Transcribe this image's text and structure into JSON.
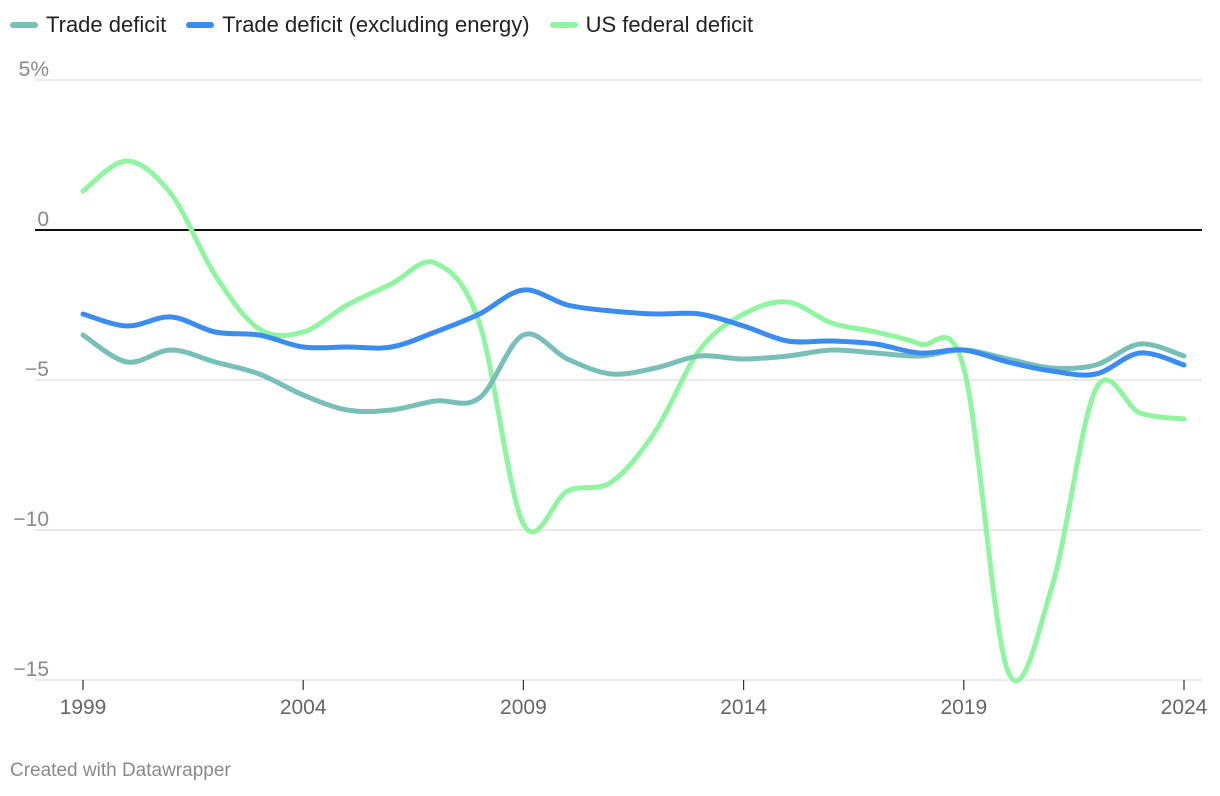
{
  "chart_data": {
    "type": "line",
    "title": "",
    "xlabel": "",
    "ylabel": "",
    "x": [
      1999,
      2000,
      2001,
      2002,
      2003,
      2004,
      2005,
      2006,
      2007,
      2008,
      2009,
      2010,
      2011,
      2012,
      2013,
      2014,
      2015,
      2016,
      2017,
      2018,
      2019,
      2020,
      2021,
      2022,
      2023,
      2024
    ],
    "xlim": [
      1999,
      2024
    ],
    "ylim": [
      -15,
      5
    ],
    "y_ticks": [
      5,
      0,
      -5,
      -10,
      -15
    ],
    "y_tick_labels": [
      "5%",
      "0",
      "−5",
      "−10",
      "−15"
    ],
    "x_ticks": [
      1999,
      2004,
      2009,
      2014,
      2019,
      2024
    ],
    "x_tick_labels": [
      "1999",
      "2004",
      "2009",
      "2014",
      "2019",
      "2024"
    ],
    "zero_line": true,
    "legend_position": "top-left",
    "series": [
      {
        "name": "Trade deficit",
        "color": "#78bfb8",
        "values": [
          -3.5,
          -4.4,
          -4.0,
          -4.4,
          -4.8,
          -5.5,
          -6.0,
          -6.0,
          -5.7,
          -5.6,
          -3.5,
          -4.3,
          -4.8,
          -4.6,
          -4.2,
          -4.3,
          -4.2,
          -4.0,
          -4.1,
          -4.2,
          -4.0,
          -4.3,
          -4.6,
          -4.5,
          -3.8,
          -4.2
        ]
      },
      {
        "name": "Trade deficit (excluding energy)",
        "color": "#3b8cf0",
        "values": [
          -2.8,
          -3.2,
          -2.9,
          -3.4,
          -3.5,
          -3.9,
          -3.9,
          -3.9,
          -3.4,
          -2.8,
          -2.0,
          -2.5,
          -2.7,
          -2.8,
          -2.8,
          -3.2,
          -3.7,
          -3.7,
          -3.8,
          -4.1,
          -4.0,
          -4.4,
          -4.7,
          -4.8,
          -4.1,
          -4.5
        ]
      },
      {
        "name": "US federal deficit",
        "color": "#90f5a0",
        "values": [
          1.3,
          2.3,
          1.2,
          -1.5,
          -3.3,
          -3.4,
          -2.5,
          -1.8,
          -1.1,
          -3.1,
          -9.8,
          -8.7,
          -8.4,
          -6.7,
          -4.0,
          -2.8,
          -2.4,
          -3.1,
          -3.4,
          -3.8,
          -4.6,
          -14.7,
          -11.9,
          -5.3,
          -6.1,
          -6.3
        ]
      }
    ]
  },
  "footer": {
    "credit": "Created with Datawrapper"
  }
}
